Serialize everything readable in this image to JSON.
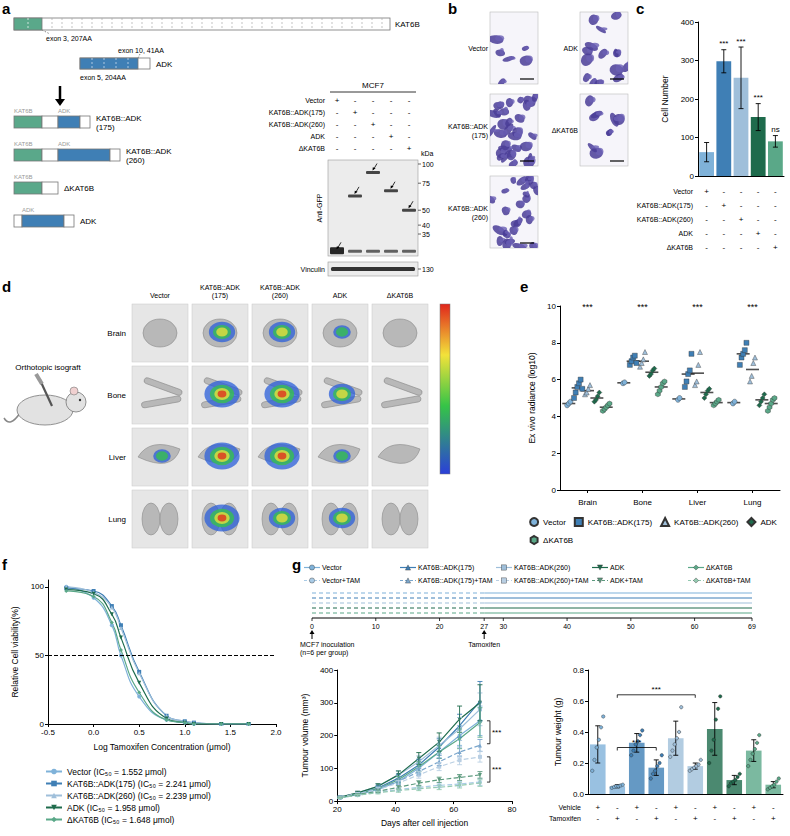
{
  "panel_a": {
    "panel": "a",
    "gene_top": "KAT6B",
    "gene_bottom": "ADK",
    "exon_notes": [
      "exon 3, 207AA",
      "exon 10, 41AA",
      "exon 5, 204AA"
    ],
    "constructs": [
      {
        "name": "KAT6B::ADK(175)",
        "parts": [
          "KAT6B",
          "ADK"
        ]
      },
      {
        "name": "KAT6B::ADK(260)",
        "parts": [
          "KAT6B",
          "ADK"
        ]
      },
      {
        "name": "ΔKAT6B",
        "parts": [
          "KAT6B"
        ]
      },
      {
        "name": "ADK",
        "parts": [
          "ADK"
        ]
      }
    ],
    "blot": {
      "cell_line": "MCF7",
      "rows": [
        {
          "label": "Vector",
          "lanes": [
            "+",
            "-",
            "-",
            "-",
            "-"
          ]
        },
        {
          "label": "KAT6B::ADK(175)",
          "lanes": [
            "-",
            "+",
            "-",
            "-",
            "-"
          ]
        },
        {
          "label": "KAT6B::ADK(260)",
          "lanes": [
            "-",
            "-",
            "+",
            "-",
            "-"
          ]
        },
        {
          "label": "ADK",
          "lanes": [
            "-",
            "-",
            "-",
            "+",
            "-"
          ]
        },
        {
          "label": "ΔKAT6B",
          "lanes": [
            "-",
            "-",
            "-",
            "-",
            "+"
          ]
        }
      ],
      "antibody": "Anti-GFP",
      "loading_control": "Vinculin",
      "unit": "kDa",
      "markers": [
        100,
        75,
        50,
        40,
        35
      ],
      "loading_marker": 130
    }
  },
  "panel_b": {
    "panel": "b",
    "images": [
      "Vector",
      "KAT6B::ADK (175)",
      "KAT6B::ADK (260)",
      "ADK",
      "ΔKAT6B"
    ]
  },
  "panel_d": {
    "panel": "d",
    "model": "Orthotopic isograft",
    "organs": [
      "Brain",
      "Bone",
      "Liver",
      "Lung"
    ],
    "groups": [
      "Vector",
      "KAT6B::ADK (175)",
      "KAT6B::ADK (260)",
      "ADK",
      "ΔKAT6B"
    ],
    "signal": [
      [
        0,
        2,
        2,
        1,
        0
      ],
      [
        0,
        3,
        3,
        2,
        0
      ],
      [
        1,
        3,
        3,
        1,
        0
      ],
      [
        0,
        3,
        2,
        2,
        0
      ]
    ]
  },
  "panel_g_timeline": {
    "xlim": [
      0,
      69
    ],
    "ticks": [
      0,
      10,
      20,
      27,
      30,
      40,
      50,
      60,
      69
    ],
    "events": [
      {
        "day": 0,
        "label": "MCF7 inoculation (n=6 per group)"
      },
      {
        "day": 27,
        "label": "Tamoxifen"
      }
    ]
  },
  "chart_data": [
    {
      "panel": "c",
      "type": "bar",
      "categories": [
        "Vector",
        "KAT6B::ADK(175)",
        "KAT6B::ADK(260)",
        "ADK",
        "ΔKAT6B"
      ],
      "values": [
        62,
        298,
        255,
        153,
        90
      ],
      "errors": [
        25,
        30,
        80,
        35,
        15
      ],
      "colors": [
        "#7fb2d9",
        "#3f7fb5",
        "#9fbfda",
        "#1e6b4c",
        "#5aa888"
      ],
      "significance": [
        null,
        "***",
        "***",
        "***",
        "ns"
      ],
      "matrix": [
        [
          "+",
          "-",
          "-",
          "-",
          "-"
        ],
        [
          "-",
          "+",
          "-",
          "-",
          "-"
        ],
        [
          "-",
          "-",
          "+",
          "-",
          "-"
        ],
        [
          "-",
          "-",
          "-",
          "+",
          "-"
        ],
        [
          "-",
          "-",
          "-",
          "-",
          "+"
        ]
      ],
      "ylabel": "Cell Number",
      "ylim": [
        0,
        400
      ],
      "yticks": [
        0,
        100,
        200,
        300,
        400
      ],
      "tick_labels": "y"
    },
    {
      "panel": "e",
      "type": "scatter",
      "categories": [
        "Brain",
        "Bone",
        "Liver",
        "Lung"
      ],
      "ylabel": "Ex vivo radiance (log10)",
      "ylim": [
        0,
        10
      ],
      "yticks": [
        0,
        2,
        4,
        6,
        8,
        10
      ],
      "significance": [
        "***",
        "***",
        "***",
        "***"
      ],
      "legend": "bottom",
      "series": [
        {
          "name": "Vector",
          "color": "#7fb2d9",
          "marker": "circle",
          "values": [
            [
              4.6,
              4.7,
              4.8
            ],
            [
              5.8,
              5.85
            ],
            [
              4.9,
              5.0
            ],
            [
              4.7,
              4.8
            ]
          ]
        },
        {
          "name": "KAT6B::ADK(175)",
          "color": "#3f7fb5",
          "marker": "square",
          "values": [
            [
              5.0,
              5.3,
              5.6,
              5.8,
              6.0,
              5.5
            ],
            [
              6.8,
              7.0,
              7.2,
              7.3,
              6.9
            ],
            [
              5.6,
              5.9,
              6.3,
              6.5,
              7.4
            ],
            [
              6.8,
              7.2,
              7.4,
              7.6,
              8.0
            ]
          ]
        },
        {
          "name": "KAT6B::ADK(260)",
          "color": "#9fbfda",
          "marker": "triangle",
          "values": [
            [
              5.2,
              5.3,
              5.5,
              5.7
            ],
            [
              6.7,
              6.9,
              7.1,
              7.5
            ],
            [
              5.7,
              5.9,
              6.8,
              7.5
            ],
            [
              5.9,
              6.2,
              6.9,
              7.2
            ]
          ]
        },
        {
          "name": "ADK",
          "color": "#1e6b4c",
          "marker": "diamond",
          "values": [
            [
              4.8,
              4.9,
              5.1,
              5.3
            ],
            [
              6.2,
              6.3,
              6.5,
              6.6
            ],
            [
              5.0,
              5.2,
              5.4,
              5.5
            ],
            [
              4.6,
              4.8,
              5.0,
              5.2
            ]
          ]
        },
        {
          "name": "ΔKAT6B",
          "color": "#5aa888",
          "marker": "hexagon",
          "values": [
            [
              4.3,
              4.4,
              4.5,
              4.6,
              4.7
            ],
            [
              5.2,
              5.4,
              5.6,
              5.8,
              5.9
            ],
            [
              4.6,
              4.7,
              4.8,
              4.9
            ],
            [
              4.3,
              4.5,
              4.7,
              4.9,
              5.0
            ]
          ]
        }
      ]
    },
    {
      "panel": "f",
      "type": "line",
      "xlabel": "Log Tamoxifen Concentration (μmol)",
      "ylabel": "Relative Cell viability(%)",
      "x": [
        -0.3,
        0,
        0.2,
        0.3,
        0.5,
        0.8,
        1.0,
        1.1,
        1.4,
        1.7
      ],
      "xlim": [
        -0.5,
        2.0
      ],
      "xticks": [
        -0.5,
        {
          "value": 0,
          "label": "0.0"
        },
        0.5,
        {
          "value": 1,
          "label": "1.0"
        },
        1.5,
        {
          "value": 2,
          "label": "2.0"
        }
      ],
      "ylim": [
        0,
        105
      ],
      "yticks": [
        0,
        50,
        100
      ],
      "reference_line": 50,
      "legend": "bottom",
      "series": [
        {
          "name": "Vector (IC₅₀ = 1.552 μmol)",
          "color": "#7fb2d9",
          "marker": "circle",
          "values": [
            100,
            92,
            72,
            50,
            20,
            3,
            1,
            0,
            0,
            0
          ]
        },
        {
          "name": "KAT6B::ADK(175) (IC₅₀ = 2.241 μmol)",
          "color": "#3f7fb5",
          "marker": "square",
          "values": [
            99,
            97,
            86,
            72,
            38,
            6,
            2,
            1,
            0,
            0
          ]
        },
        {
          "name": "KAT6B::ADK(260) (IC₅₀ = 2.239 μmol)",
          "color": "#9fbfda",
          "marker": "triangle",
          "values": [
            100,
            96,
            85,
            70,
            37,
            6,
            2,
            1,
            0,
            0
          ]
        },
        {
          "name": "ADK (IC₅₀ = 1.958 μmol)",
          "color": "#1e6b4c",
          "marker": "triangle-down",
          "values": [
            98,
            95,
            80,
            63,
            30,
            4,
            1,
            0,
            0,
            0
          ]
        },
        {
          "name": "ΔKAT6B (IC₅₀ = 1.648 μmol)",
          "color": "#5aa888",
          "marker": "diamond",
          "values": [
            97,
            93,
            74,
            54,
            23,
            3,
            1,
            0,
            0,
            0
          ]
        }
      ]
    },
    {
      "panel": "g",
      "type": "line",
      "x": [
        21,
        27,
        34,
        41,
        48,
        55,
        62,
        69
      ],
      "xlabel": "Days after cell injection",
      "ylabel": "Tumour volume (mm³)",
      "xlim": [
        20,
        80
      ],
      "xticks": [
        20,
        40,
        60,
        80
      ],
      "ylim": [
        0,
        400
      ],
      "yticks": [
        0,
        100,
        200,
        300,
        400
      ],
      "legend": "top",
      "comparisons": [
        {
          "range": [
            175,
            245
          ],
          "label": "***"
        },
        {
          "range": [
            58,
            135
          ],
          "label": "***"
        }
      ],
      "series": [
        {
          "name": "Vector",
          "color": "#7fb2d9",
          "marker": "circle",
          "line_style": "solid",
          "values": [
            10,
            20,
            35,
            60,
            100,
            150,
            200,
            245
          ],
          "errors": [
            2,
            4,
            6,
            10,
            15,
            20,
            30,
            45
          ]
        },
        {
          "name": "KAT6B::ADK(175)",
          "color": "#3f7fb5",
          "marker": "triangle",
          "line_style": "solid",
          "values": [
            12,
            22,
            40,
            70,
            110,
            165,
            230,
            305
          ],
          "errors": [
            3,
            5,
            8,
            12,
            18,
            25,
            35,
            60
          ]
        },
        {
          "name": "KAT6B::ADK(260)",
          "color": "#9fbfda",
          "marker": "square",
          "line_style": "solid",
          "values": [
            12,
            25,
            45,
            80,
            120,
            170,
            220,
            280
          ],
          "errors": [
            3,
            5,
            8,
            12,
            18,
            25,
            35,
            50
          ]
        },
        {
          "name": "ADK",
          "color": "#1e6b4c",
          "marker": "triangle-down",
          "line_style": "solid",
          "values": [
            12,
            25,
            45,
            80,
            130,
            180,
            250,
            300
          ],
          "errors": [
            3,
            5,
            8,
            12,
            18,
            28,
            40,
            55
          ]
        },
        {
          "name": "ΔKAT6B",
          "color": "#5aa888",
          "marker": "diamond",
          "line_style": "solid",
          "values": [
            10,
            22,
            38,
            65,
            105,
            150,
            190,
            240
          ],
          "errors": [
            2,
            4,
            6,
            10,
            15,
            20,
            30,
            45
          ]
        },
        {
          "name": "Vector+TAM",
          "color": "#a9cbe6",
          "marker": "circle",
          "line_style": "dashed",
          "values": [
            10,
            18,
            28,
            35,
            42,
            48,
            52,
            58
          ],
          "errors": [
            2,
            3,
            4,
            5,
            6,
            7,
            8,
            10
          ]
        },
        {
          "name": "KAT6B::ADK(175)+TAM",
          "color": "#7aa6cc",
          "marker": "triangle",
          "line_style": "dashed",
          "values": [
            12,
            22,
            38,
            60,
            90,
            120,
            150,
            170
          ],
          "errors": [
            3,
            4,
            6,
            8,
            10,
            12,
            15,
            18
          ]
        },
        {
          "name": "KAT6B::ADK(260)+TAM",
          "color": "#b9cfe3",
          "marker": "square",
          "line_style": "dashed",
          "values": [
            12,
            22,
            35,
            55,
            80,
            105,
            125,
            135
          ],
          "errors": [
            3,
            4,
            6,
            8,
            10,
            12,
            14,
            16
          ]
        },
        {
          "name": "ADK+TAM",
          "color": "#5c9a7e",
          "marker": "triangle-down",
          "line_style": "dashed",
          "values": [
            10,
            20,
            30,
            42,
            55,
            65,
            72,
            80
          ],
          "errors": [
            2,
            3,
            4,
            5,
            7,
            8,
            9,
            10
          ]
        },
        {
          "name": "ΔKAT6B+TAM",
          "color": "#93c9b0",
          "marker": "diamond",
          "line_style": "dashed",
          "values": [
            10,
            18,
            26,
            32,
            38,
            42,
            48,
            55
          ],
          "errors": [
            2,
            3,
            4,
            5,
            6,
            7,
            8,
            10
          ]
        }
      ]
    },
    {
      "type": "bar",
      "categories": [
        null,
        null,
        null,
        null,
        null,
        null,
        null,
        null,
        null,
        null
      ],
      "values": [
        0.32,
        0.05,
        0.33,
        0.17,
        0.36,
        0.18,
        0.42,
        0.09,
        0.28,
        0.06
      ],
      "errors": [
        0.12,
        0.01,
        0.06,
        0.05,
        0.11,
        0.02,
        0.17,
        0.03,
        0.07,
        0.02
      ],
      "colors": [
        "#7fb2d9",
        "#7fb2d9",
        "#3f7fb5",
        "#3f7fb5",
        "#9fbfda",
        "#9fbfda",
        "#1e6b4c",
        "#1e6b4c",
        "#5aa888",
        "#5aa888"
      ],
      "points": [
        [
          0.15,
          0.22,
          0.3,
          0.35,
          0.43,
          0.5
        ],
        [
          0.04,
          0.045,
          0.05,
          0.05,
          0.055,
          0.06
        ],
        [
          0.25,
          0.28,
          0.32,
          0.34,
          0.38,
          0.41
        ],
        [
          0.1,
          0.13,
          0.15,
          0.18,
          0.2,
          0.25
        ],
        [
          0.24,
          0.28,
          0.32,
          0.36,
          0.4,
          0.56
        ],
        [
          0.15,
          0.16,
          0.17,
          0.18,
          0.19,
          0.22
        ],
        [
          0.2,
          0.28,
          0.35,
          0.48,
          0.55,
          0.63
        ],
        [
          0.05,
          0.07,
          0.08,
          0.09,
          0.11,
          0.13
        ],
        [
          0.18,
          0.22,
          0.26,
          0.29,
          0.33,
          0.38
        ],
        [
          0.03,
          0.04,
          0.05,
          0.06,
          0.08,
          0.1
        ]
      ],
      "ylabel": "Tumour weight (g)",
      "ylim": [
        0,
        0.8
      ],
      "yticks": [
        {
          "value": 0,
          "label": "0.0"
        },
        {
          "value": 0.2,
          "label": "0.2"
        },
        {
          "value": 0.4,
          "label": "0.4"
        },
        {
          "value": 0.6,
          "label": "0.6"
        },
        {
          "value": 0.8,
          "label": "0.8"
        }
      ],
      "matrix": [
        {
          "label": "Vehicle",
          "values": [
            "+",
            "-",
            "+",
            "-",
            "+",
            "-",
            "+",
            "-",
            "+",
            "-"
          ]
        },
        {
          "label": "Tamoxifen",
          "values": [
            "-",
            "+",
            "-",
            "+",
            "-",
            "+",
            "-",
            "+",
            "-",
            "+"
          ]
        }
      ],
      "comparisons": [
        {
          "from": 1,
          "to": 3,
          "y": 0.3,
          "label": "***"
        },
        {
          "from": 1,
          "to": 5,
          "y": 0.64,
          "label": "***"
        }
      ]
    }
  ]
}
